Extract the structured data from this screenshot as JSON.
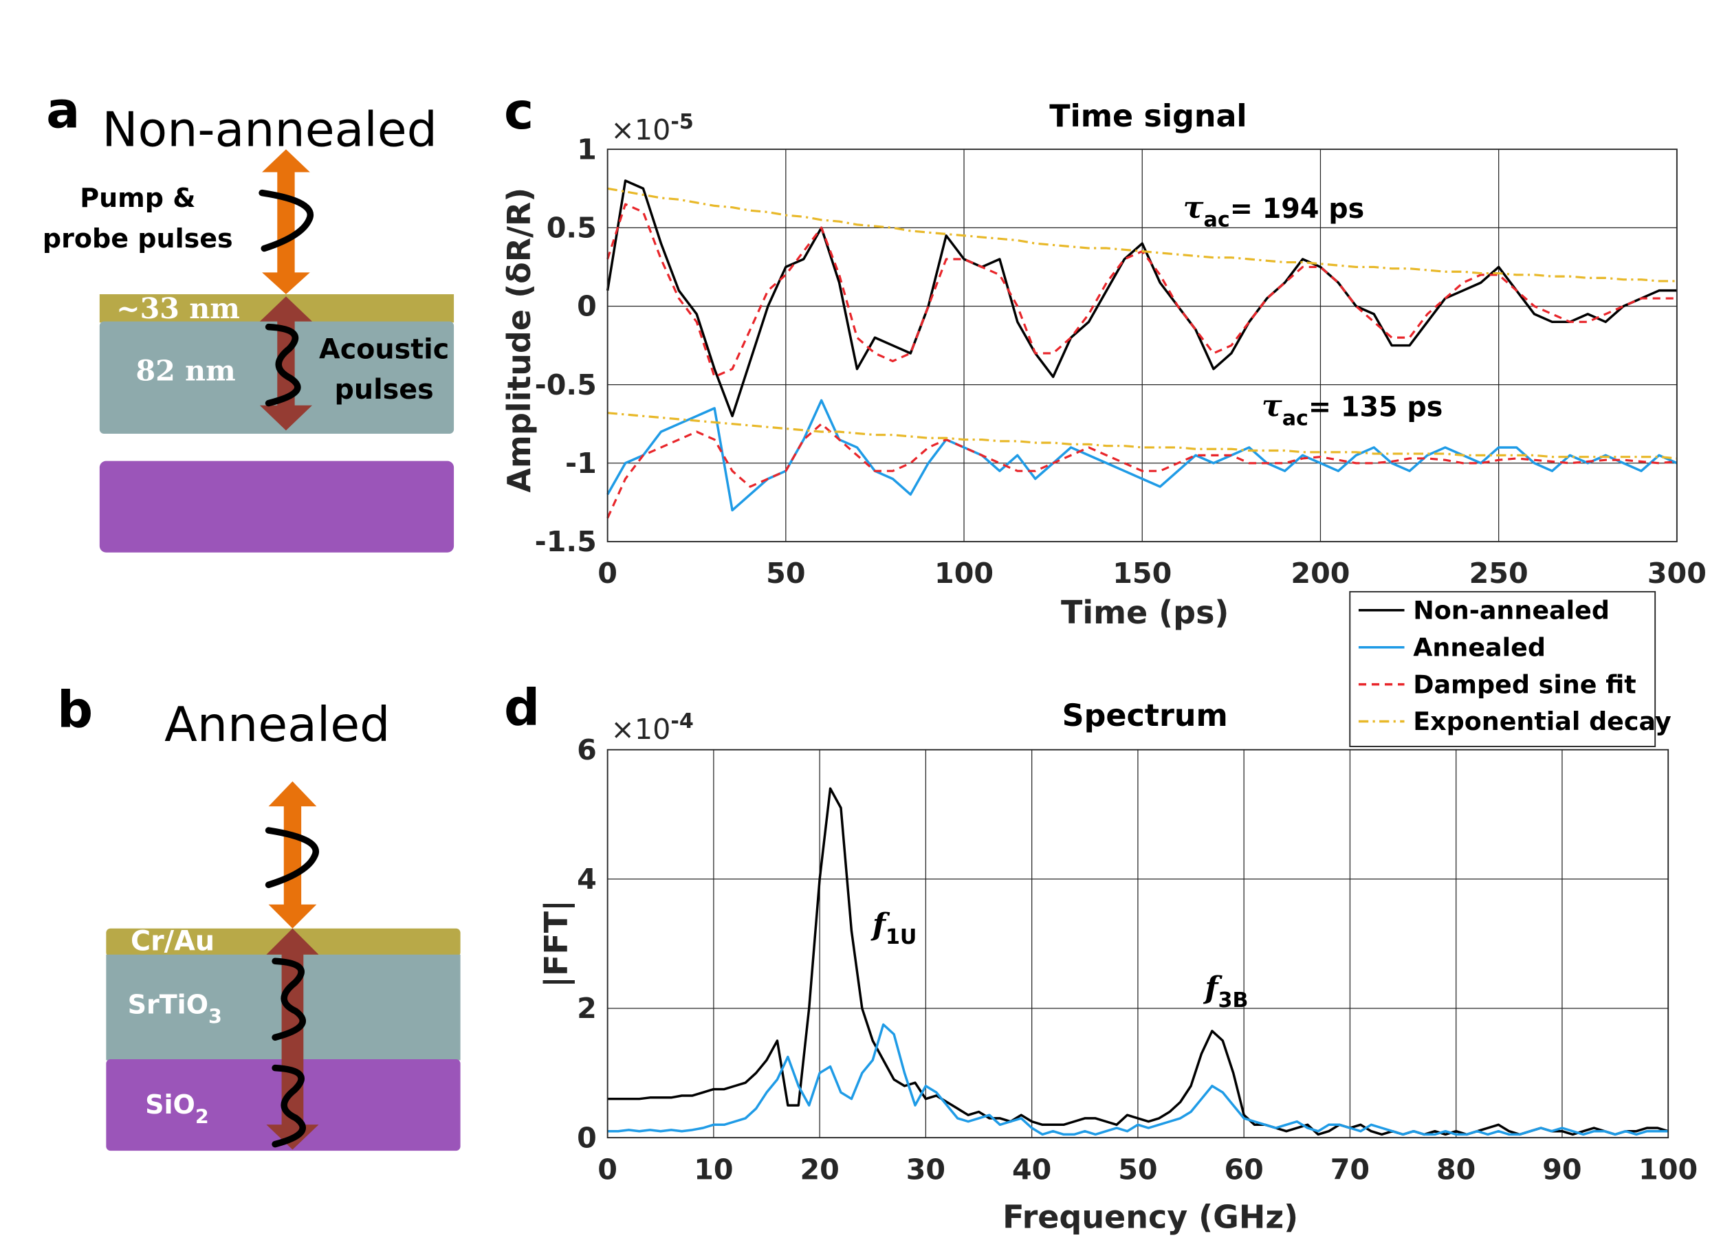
{
  "diagrams": [
    {
      "label": "a",
      "title": "Non-annealed",
      "pump_label": [
        "Pump &",
        "probe pulses"
      ],
      "layers": [
        "~33 nm",
        "82 nm"
      ],
      "acoustic_label": [
        "Acoustic",
        "pulses"
      ]
    },
    {
      "label": "b",
      "title": "Annealed",
      "layers": [
        {
          "text": "Cr/Au"
        },
        {
          "text": "SrTiO",
          "sub": "3"
        },
        {
          "text": "SiO",
          "sub": "2"
        }
      ]
    }
  ],
  "chart_data": [
    {
      "type": "line",
      "panel_label": "c",
      "title": "Time signal",
      "x_label": "Time (ps)",
      "y_label": "Amplitude (δR/R)",
      "y_multiplier": {
        "base": "×10",
        "exponent": "-5"
      },
      "x": [
        0,
        5,
        10,
        15,
        20,
        25,
        30,
        35,
        40,
        45,
        50,
        55,
        60,
        65,
        70,
        75,
        80,
        85,
        90,
        95,
        100,
        105,
        110,
        115,
        120,
        125,
        130,
        135,
        140,
        145,
        150,
        155,
        160,
        165,
        170,
        175,
        180,
        185,
        190,
        195,
        200,
        205,
        210,
        215,
        220,
        225,
        230,
        235,
        240,
        245,
        250,
        255,
        260,
        265,
        270,
        275,
        280,
        285,
        290,
        295,
        300
      ],
      "series": [
        {
          "name": "Non-annealed",
          "color": "#000000",
          "dash": "solid",
          "values": [
            0.1,
            0.8,
            0.75,
            0.4,
            0.1,
            -0.05,
            -0.4,
            -0.7,
            -0.35,
            0,
            0.25,
            0.3,
            0.5,
            0.15,
            -0.4,
            -0.2,
            -0.25,
            -0.3,
            0,
            0.45,
            0.3,
            0.25,
            0.3,
            -0.1,
            -0.3,
            -0.45,
            -0.2,
            -0.1,
            0.1,
            0.3,
            0.4,
            0.15,
            0,
            -0.15,
            -0.4,
            -0.3,
            -0.1,
            0.05,
            0.15,
            0.3,
            0.25,
            0.15,
            0,
            -0.05,
            -0.25,
            -0.25,
            -0.1,
            0.05,
            0.1,
            0.15,
            0.25,
            0.1,
            -0.05,
            -0.1,
            -0.1,
            -0.05,
            -0.1,
            0,
            0.05,
            0.1,
            0.1
          ]
        },
        {
          "name": "Annealed",
          "color": "#1f9be6",
          "dash": "solid",
          "values": [
            -1.2,
            -1.0,
            -0.95,
            -0.8,
            -0.75,
            -0.7,
            -0.65,
            -1.3,
            -1.2,
            -1.1,
            -1.05,
            -0.85,
            -0.6,
            -0.85,
            -0.9,
            -1.05,
            -1.1,
            -1.2,
            -1.0,
            -0.85,
            -0.9,
            -0.95,
            -1.05,
            -0.95,
            -1.1,
            -1.0,
            -0.9,
            -0.95,
            -1.0,
            -1.05,
            -1.1,
            -1.15,
            -1.05,
            -0.95,
            -1.0,
            -0.95,
            -0.9,
            -1.0,
            -1.05,
            -0.95,
            -1.0,
            -1.05,
            -0.95,
            -0.9,
            -1.0,
            -1.05,
            -0.95,
            -0.9,
            -0.95,
            -1.0,
            -0.9,
            -0.9,
            -1.0,
            -1.05,
            -0.95,
            -1.0,
            -0.95,
            -1.0,
            -1.05,
            -0.95,
            -1.0
          ]
        },
        {
          "name": "Damped sine fit",
          "color": "#e8252a",
          "dash": "dash",
          "values": [
            0.3,
            0.65,
            0.6,
            0.3,
            0.05,
            -0.1,
            -0.45,
            -0.4,
            -0.15,
            0.1,
            0.2,
            0.35,
            0.5,
            0.2,
            -0.2,
            -0.3,
            -0.35,
            -0.3,
            0,
            0.3,
            0.3,
            0.25,
            0.2,
            0,
            -0.3,
            -0.3,
            -0.2,
            -0.05,
            0.15,
            0.3,
            0.35,
            0.2,
            0,
            -0.15,
            -0.3,
            -0.25,
            -0.1,
            0.05,
            0.15,
            0.25,
            0.25,
            0.15,
            0,
            -0.1,
            -0.2,
            -0.2,
            -0.05,
            0.05,
            0.15,
            0.2,
            0.2,
            0.1,
            0,
            -0.05,
            -0.1,
            -0.1,
            -0.05,
            0,
            0.05,
            0.05,
            0.05
          ]
        },
        {
          "name": "Exponential decay",
          "color": "#e8b828",
          "dash": "dashdot",
          "values": [
            0.75,
            0.73,
            0.71,
            0.69,
            0.68,
            0.66,
            0.64,
            0.63,
            0.61,
            0.6,
            0.58,
            0.57,
            0.55,
            0.54,
            0.52,
            0.51,
            0.5,
            0.48,
            0.47,
            0.46,
            0.45,
            0.44,
            0.43,
            0.42,
            0.4,
            0.39,
            0.38,
            0.37,
            0.37,
            0.36,
            0.35,
            0.34,
            0.33,
            0.32,
            0.31,
            0.31,
            0.3,
            0.29,
            0.28,
            0.28,
            0.27,
            0.26,
            0.25,
            0.25,
            0.24,
            0.24,
            0.23,
            0.22,
            0.22,
            0.21,
            0.21,
            0.2,
            0.2,
            0.19,
            0.19,
            0.18,
            0.18,
            0.17,
            0.17,
            0.16,
            0.16
          ]
        },
        {
          "name": "Damped sine fit",
          "in_legend": false,
          "color": "#e8252a",
          "dash": "dash",
          "values": [
            -1.35,
            -1.1,
            -0.95,
            -0.9,
            -0.85,
            -0.8,
            -0.85,
            -1.05,
            -1.15,
            -1.1,
            -1.05,
            -0.85,
            -0.75,
            -0.85,
            -0.95,
            -1.05,
            -1.05,
            -1.0,
            -0.9,
            -0.85,
            -0.9,
            -0.95,
            -1.0,
            -1.05,
            -1.05,
            -1.0,
            -0.95,
            -0.9,
            -0.95,
            -1.0,
            -1.05,
            -1.05,
            -1.0,
            -0.95,
            -0.95,
            -0.95,
            -1.0,
            -1.0,
            -1.0,
            -0.97,
            -0.96,
            -0.98,
            -1.0,
            -1.0,
            -0.99,
            -0.97,
            -0.97,
            -0.98,
            -1.0,
            -1.0,
            -0.98,
            -0.97,
            -0.98,
            -0.99,
            -1.0,
            -0.99,
            -0.98,
            -0.98,
            -0.99,
            -1.0,
            -0.99
          ]
        },
        {
          "name": "Exponential decay",
          "in_legend": false,
          "color": "#e8b828",
          "dash": "dashdot",
          "values": [
            -0.68,
            -0.69,
            -0.7,
            -0.71,
            -0.72,
            -0.73,
            -0.74,
            -0.75,
            -0.76,
            -0.77,
            -0.78,
            -0.79,
            -0.8,
            -0.8,
            -0.81,
            -0.82,
            -0.82,
            -0.83,
            -0.84,
            -0.84,
            -0.85,
            -0.85,
            -0.86,
            -0.86,
            -0.87,
            -0.87,
            -0.88,
            -0.88,
            -0.89,
            -0.89,
            -0.9,
            -0.9,
            -0.9,
            -0.91,
            -0.91,
            -0.91,
            -0.92,
            -0.92,
            -0.92,
            -0.93,
            -0.93,
            -0.93,
            -0.93,
            -0.94,
            -0.94,
            -0.94,
            -0.94,
            -0.94,
            -0.95,
            -0.95,
            -0.95,
            -0.95,
            -0.95,
            -0.96,
            -0.96,
            -0.96,
            -0.96,
            -0.96,
            -0.96,
            -0.96,
            -0.97
          ]
        }
      ],
      "annotations": [
        {
          "symbol": "τ",
          "sub": "ac",
          "text": "= 194 ps"
        },
        {
          "symbol": "τ",
          "sub": "ac",
          "text": "= 135 ps"
        }
      ],
      "xlim": [
        0,
        300
      ],
      "xticks": [
        0,
        50,
        100,
        150,
        200,
        250,
        300
      ],
      "ylim": [
        -1.5,
        1
      ],
      "yticks": [
        -1.5,
        -1,
        -0.5,
        0,
        0.5,
        1
      ],
      "grid": true,
      "legend": "outside lower right"
    },
    {
      "type": "line",
      "panel_label": "d",
      "title": "Spectrum",
      "x_label": "Frequency (GHz)",
      "y_label": "|FFT|",
      "y_multiplier": {
        "base": "×10",
        "exponent": "-4"
      },
      "x": [
        0,
        1,
        2,
        3,
        4,
        5,
        6,
        7,
        8,
        9,
        10,
        11,
        12,
        13,
        14,
        15,
        16,
        17,
        18,
        19,
        20,
        21,
        22,
        23,
        24,
        25,
        26,
        27,
        28,
        29,
        30,
        31,
        32,
        33,
        34,
        35,
        36,
        37,
        38,
        39,
        40,
        41,
        42,
        43,
        44,
        45,
        46,
        47,
        48,
        49,
        50,
        51,
        52,
        53,
        54,
        55,
        56,
        57,
        58,
        59,
        60,
        61,
        62,
        63,
        64,
        65,
        66,
        67,
        68,
        69,
        70,
        71,
        72,
        73,
        74,
        75,
        76,
        77,
        78,
        79,
        80,
        81,
        82,
        83,
        84,
        85,
        86,
        87,
        88,
        89,
        90,
        91,
        92,
        93,
        94,
        95,
        96,
        97,
        98,
        99,
        100
      ],
      "series": [
        {
          "name": "Non-annealed",
          "color": "#000000",
          "dash": "solid",
          "values": [
            0.6,
            0.6,
            0.6,
            0.6,
            0.62,
            0.62,
            0.62,
            0.65,
            0.65,
            0.7,
            0.75,
            0.75,
            0.8,
            0.85,
            1.0,
            1.2,
            1.5,
            0.5,
            0.5,
            2.0,
            4.0,
            5.4,
            5.1,
            3.2,
            2.0,
            1.5,
            1.2,
            0.9,
            0.8,
            0.85,
            0.6,
            0.65,
            0.55,
            0.45,
            0.35,
            0.4,
            0.3,
            0.3,
            0.25,
            0.35,
            0.25,
            0.2,
            0.2,
            0.2,
            0.25,
            0.3,
            0.3,
            0.25,
            0.2,
            0.35,
            0.3,
            0.25,
            0.3,
            0.4,
            0.55,
            0.8,
            1.3,
            1.65,
            1.5,
            1.0,
            0.35,
            0.2,
            0.2,
            0.15,
            0.1,
            0.15,
            0.2,
            0.05,
            0.1,
            0.2,
            0.15,
            0.2,
            0.1,
            0.05,
            0.1,
            0.05,
            0.1,
            0.05,
            0.1,
            0.05,
            0.1,
            0.05,
            0.1,
            0.15,
            0.2,
            0.1,
            0.05,
            0.1,
            0.15,
            0.1,
            0.1,
            0.05,
            0.1,
            0.15,
            0.1,
            0.05,
            0.1,
            0.1,
            0.15,
            0.15,
            0.1
          ]
        },
        {
          "name": "Annealed",
          "color": "#1f9be6",
          "dash": "solid",
          "values": [
            0.1,
            0.1,
            0.12,
            0.1,
            0.12,
            0.1,
            0.12,
            0.1,
            0.12,
            0.15,
            0.2,
            0.2,
            0.25,
            0.3,
            0.45,
            0.7,
            0.9,
            1.25,
            0.8,
            0.5,
            1.0,
            1.1,
            0.7,
            0.6,
            1.0,
            1.2,
            1.75,
            1.6,
            1.0,
            0.5,
            0.8,
            0.7,
            0.5,
            0.3,
            0.25,
            0.3,
            0.35,
            0.2,
            0.25,
            0.3,
            0.15,
            0.05,
            0.1,
            0.05,
            0.05,
            0.1,
            0.05,
            0.1,
            0.15,
            0.1,
            0.2,
            0.15,
            0.2,
            0.25,
            0.3,
            0.4,
            0.6,
            0.8,
            0.7,
            0.5,
            0.3,
            0.25,
            0.2,
            0.15,
            0.2,
            0.25,
            0.15,
            0.1,
            0.2,
            0.2,
            0.15,
            0.1,
            0.2,
            0.15,
            0.1,
            0.05,
            0.1,
            0.05,
            0.05,
            0.1,
            0.05,
            0.05,
            0.1,
            0.05,
            0.1,
            0.05,
            0.05,
            0.1,
            0.15,
            0.1,
            0.15,
            0.1,
            0.05,
            0.1,
            0.1,
            0.05,
            0.1,
            0.05,
            0.1,
            0.1,
            0.1
          ]
        }
      ],
      "annotations": [
        {
          "symbol": "f",
          "sub": "1U"
        },
        {
          "symbol": "f",
          "sub": "3B"
        }
      ],
      "xlim": [
        0,
        100
      ],
      "xticks": [
        0,
        10,
        20,
        30,
        40,
        50,
        60,
        70,
        80,
        90,
        100
      ],
      "ylim": [
        0,
        6
      ],
      "yticks": [
        0,
        2,
        4,
        6
      ],
      "grid": true
    }
  ]
}
